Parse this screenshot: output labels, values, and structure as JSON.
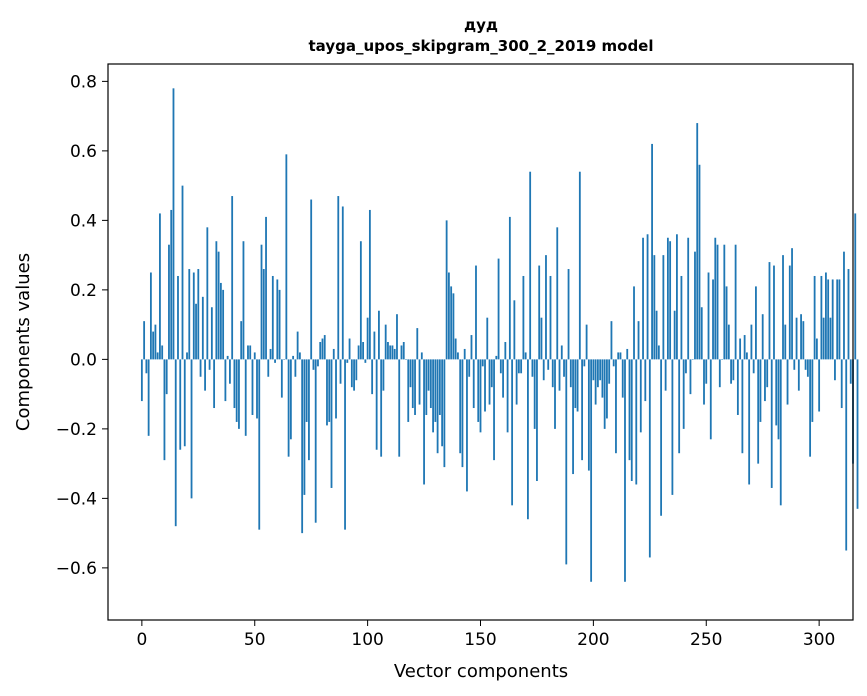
{
  "chart_data": {
    "type": "bar",
    "title": "дуд",
    "subtitle": "tayga_upos_skipgram_300_2_2019 model",
    "xlabel": "Vector components",
    "ylabel": "Components values",
    "xlim": [
      -15,
      315
    ],
    "ylim": [
      -0.75,
      0.85
    ],
    "xticks": [
      0,
      50,
      100,
      150,
      200,
      250,
      300
    ],
    "xtick_labels": [
      "0",
      "50",
      "100",
      "150",
      "200",
      "250",
      "300"
    ],
    "yticks": [
      -0.6,
      -0.4,
      -0.2,
      0.0,
      0.2,
      0.4,
      0.6,
      0.8
    ],
    "ytick_labels": [
      "−0.6",
      "−0.4",
      "−0.2",
      "0.0",
      "0.2",
      "0.4",
      "0.6",
      "0.8"
    ],
    "grid": false,
    "bar_color": "#1f77b4",
    "series": [
      {
        "values": [
          -0.12,
          0.11,
          -0.04,
          -0.22,
          0.25,
          0.08,
          0.1,
          0.02,
          0.42,
          0.04,
          -0.29,
          -0.1,
          0.33,
          0.43,
          0.78,
          -0.48,
          0.24,
          -0.26,
          0.5,
          -0.25,
          0.02,
          0.26,
          -0.4,
          0.25,
          0.16,
          0.26,
          -0.05,
          0.18,
          -0.09,
          0.38,
          -0.03,
          0.15,
          -0.14,
          0.34,
          0.31,
          0.22,
          0.2,
          -0.12,
          0.01,
          -0.07,
          0.47,
          -0.14,
          -0.18,
          -0.2,
          0.11,
          0.34,
          -0.22,
          0.04,
          0.04,
          -0.16,
          0.02,
          -0.17,
          -0.49,
          0.33,
          0.26,
          0.41,
          -0.05,
          0.03,
          0.24,
          -0.01,
          0.23,
          0.2,
          -0.11,
          0.0,
          0.59,
          -0.28,
          -0.23,
          0.01,
          -0.05,
          0.08,
          0.02,
          -0.5,
          -0.39,
          -0.18,
          -0.29,
          0.46,
          -0.03,
          -0.47,
          -0.02,
          0.05,
          0.06,
          0.07,
          -0.19,
          -0.18,
          -0.37,
          0.03,
          -0.17,
          0.47,
          -0.07,
          0.44,
          -0.49,
          -0.01,
          0.06,
          -0.08,
          -0.09,
          -0.06,
          0.04,
          0.34,
          0.05,
          -0.01,
          0.12,
          0.43,
          -0.1,
          0.08,
          -0.26,
          0.14,
          -0.28,
          -0.09,
          0.1,
          0.05,
          0.04,
          0.04,
          0.03,
          0.13,
          -0.28,
          0.04,
          0.05,
          0.0,
          -0.18,
          -0.08,
          -0.14,
          -0.16,
          0.09,
          -0.13,
          0.02,
          -0.36,
          -0.16,
          -0.09,
          -0.14,
          -0.21,
          -0.18,
          -0.27,
          -0.16,
          -0.25,
          -0.31,
          0.4,
          0.25,
          0.21,
          0.19,
          0.06,
          0.02,
          -0.27,
          -0.31,
          0.03,
          -0.38,
          -0.05,
          0.07,
          -0.14,
          0.27,
          -0.18,
          -0.21,
          -0.02,
          -0.15,
          0.12,
          -0.13,
          -0.08,
          -0.29,
          0.01,
          0.29,
          -0.04,
          -0.11,
          0.05,
          -0.21,
          0.41,
          -0.42,
          0.17,
          -0.13,
          -0.04,
          -0.04,
          0.24,
          0.02,
          -0.46,
          0.54,
          -0.05,
          -0.2,
          -0.35,
          0.27,
          0.12,
          -0.06,
          0.3,
          -0.03,
          0.24,
          -0.08,
          -0.2,
          0.38,
          -0.09,
          0.04,
          -0.05,
          -0.59,
          0.26,
          -0.08,
          -0.33,
          -0.14,
          -0.15,
          0.54,
          -0.29,
          -0.02,
          0.1,
          -0.32,
          -0.64,
          -0.06,
          -0.13,
          -0.08,
          -0.06,
          -0.11,
          -0.2,
          -0.17,
          -0.07,
          0.11,
          -0.02,
          -0.27,
          0.02,
          0.02,
          -0.11,
          -0.64,
          0.03,
          -0.29,
          -0.35,
          0.21,
          -0.36,
          0.11,
          -0.21,
          0.35,
          -0.12,
          0.36,
          -0.57,
          0.62,
          0.3,
          0.14,
          0.04,
          -0.45,
          0.3,
          -0.09,
          0.35,
          0.34,
          -0.39,
          0.14,
          0.36,
          -0.27,
          0.24,
          -0.2,
          -0.04,
          0.35,
          -0.1,
          0.0,
          0.31,
          0.68,
          0.56,
          0.15,
          -0.13,
          -0.07,
          0.25,
          -0.23,
          0.23,
          0.35,
          0.33,
          -0.08,
          0.0,
          0.33,
          0.21,
          0.1,
          -0.07,
          -0.06,
          0.33,
          -0.16,
          0.06,
          -0.27,
          0.07,
          0.02,
          -0.36,
          0.1,
          -0.04,
          0.21,
          -0.3,
          -0.18,
          0.13,
          -0.12,
          -0.08,
          0.28,
          -0.37,
          0.27,
          -0.19,
          -0.23,
          -0.42,
          0.3,
          0.1,
          -0.13,
          0.27,
          0.32,
          -0.03,
          0.12,
          -0.09,
          0.13,
          0.11,
          -0.03,
          -0.05,
          -0.28,
          -0.18,
          0.24,
          0.06,
          -0.15,
          0.24,
          0.12,
          0.25,
          0.23,
          0.12,
          0.23,
          -0.06,
          0.23,
          0.23,
          -0.14,
          0.31,
          -0.55,
          0.26,
          -0.07,
          -0.3,
          0.42,
          -0.43
        ]
      }
    ]
  }
}
